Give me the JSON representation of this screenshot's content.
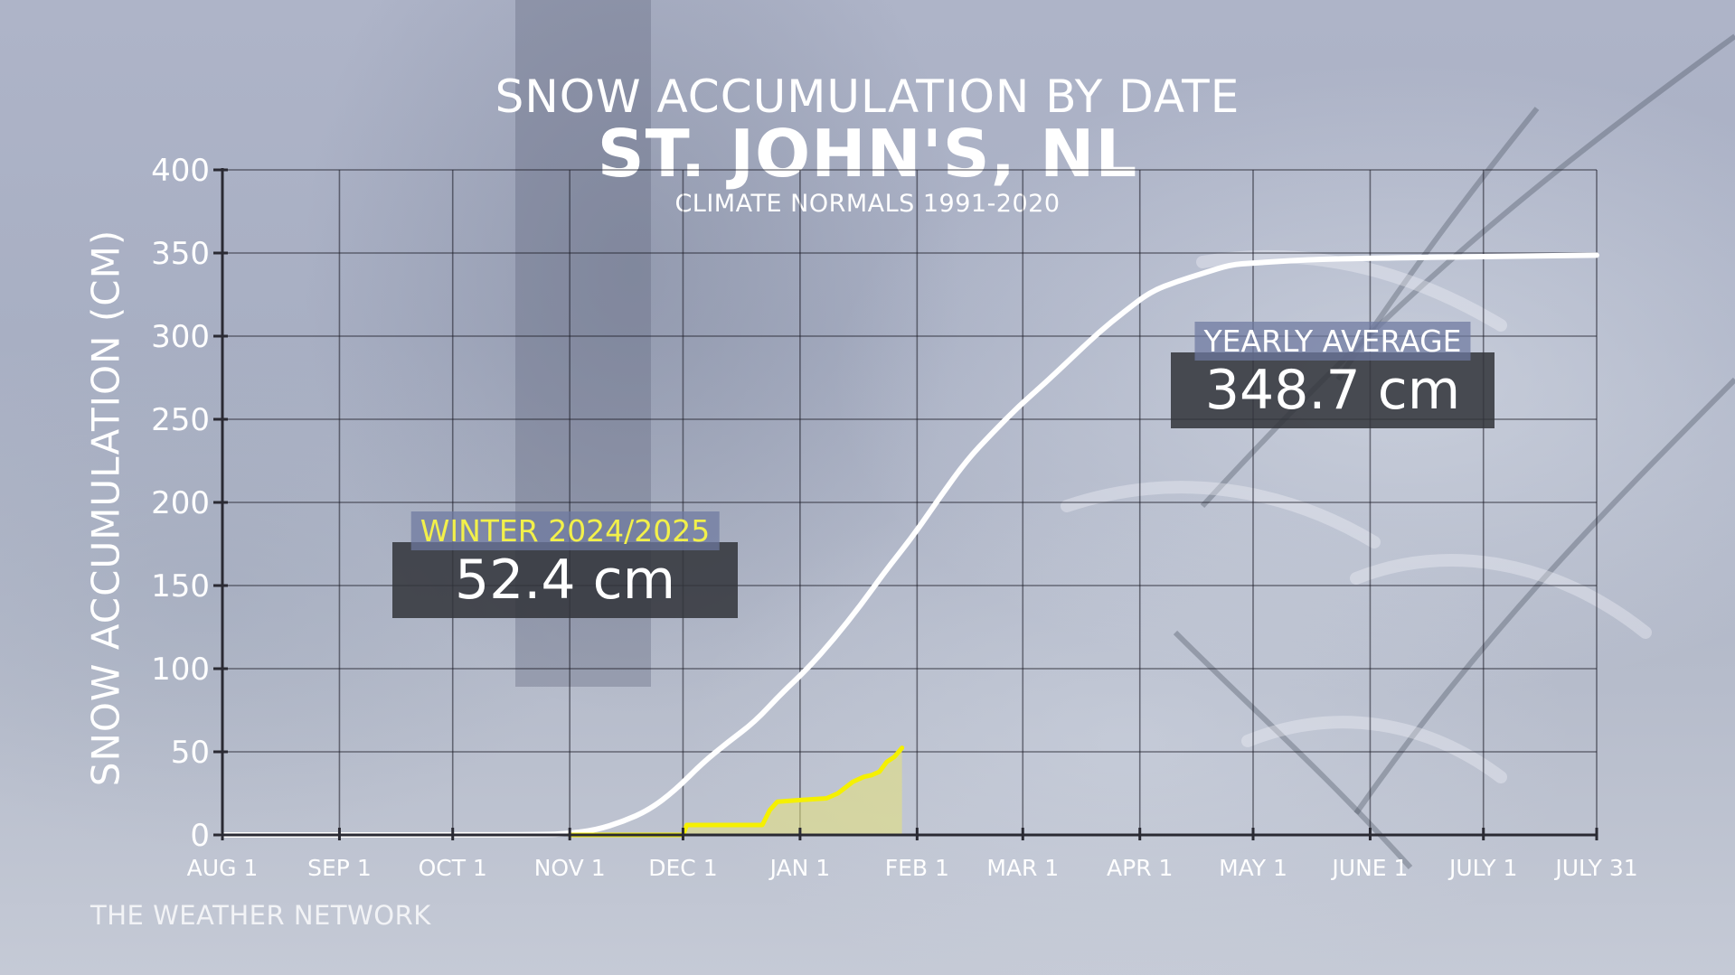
{
  "title": "SNOW ACCUMULATION BY DATE",
  "subtitle": "ST. JOHN'S, NL",
  "note": "CLIMATE NORMALS 1991-2020",
  "source": "THE WEATHER NETWORK",
  "callouts": {
    "winter": {
      "label": "WINTER 2024/2025",
      "value": "52.4 cm"
    },
    "yearly": {
      "label": "YEARLY AVERAGE",
      "value": "348.7 cm"
    }
  },
  "colors": {
    "average_line": "#ffffff",
    "winter_line": "#f5f000",
    "winter_fill": "#e6e27a"
  },
  "chart_data": {
    "type": "line",
    "title": "SNOW ACCUMULATION BY DATE",
    "ylabel": "SNOW ACCUMULATION (CM)",
    "xlabel": "",
    "ylim": [
      0,
      400
    ],
    "yticks": [
      0,
      50,
      100,
      150,
      200,
      250,
      300,
      350,
      400
    ],
    "xticks": [
      {
        "label": "AUG 1",
        "date": "Aug 1"
      },
      {
        "label": "SEP 1",
        "date": "Sep 1"
      },
      {
        "label": "OCT 1",
        "date": "Oct 1"
      },
      {
        "label": "NOV 1",
        "date": "Nov 1"
      },
      {
        "label": "DEC 1",
        "date": "Dec 1"
      },
      {
        "label": "JAN 1",
        "date": "Jan 1"
      },
      {
        "label": "FEB 1",
        "date": "Feb 1"
      },
      {
        "label": "MAR 1",
        "date": "Mar 1"
      },
      {
        "label": "APR 1",
        "date": "Apr 1"
      },
      {
        "label": "MAY 1",
        "date": "May 1"
      },
      {
        "label": "JUNE 1",
        "date": "Jun 1"
      },
      {
        "label": "JULY 1",
        "date": "Jul 1"
      },
      {
        "label": "JULY 31",
        "date": "Jul 31"
      }
    ],
    "grid": true,
    "series": [
      {
        "name": "YEARLY AVERAGE",
        "x": [
          "Aug 1",
          "Oct 25",
          "Nov 1",
          "Nov 8",
          "Nov 15",
          "Nov 22",
          "Nov 29",
          "Dec 6",
          "Dec 13",
          "Dec 20",
          "Dec 27",
          "Jan 3",
          "Jan 10",
          "Jan 17",
          "Jan 24",
          "Jan 31",
          "Feb 7",
          "Feb 14",
          "Feb 21",
          "Feb 28",
          "Mar 7",
          "Mar 14",
          "Mar 21",
          "Mar 28",
          "Apr 4",
          "Apr 11",
          "Apr 18",
          "Apr 25",
          "May 1",
          "May 15",
          "Jun 1",
          "Jul 31"
        ],
        "y": [
          0,
          0,
          1,
          3,
          8,
          15,
          27,
          43,
          56,
          68,
          85,
          100,
          118,
          138,
          160,
          180,
          203,
          225,
          242,
          258,
          272,
          287,
          302,
          315,
          327,
          333,
          338,
          343,
          344,
          346,
          347,
          348.7
        ]
      },
      {
        "name": "WINTER 2024/2025",
        "x": [
          "Nov 1",
          "Dec 1",
          "Dec 2",
          "Dec 22",
          "Dec 24",
          "Dec 26",
          "Jan 1",
          "Jan 8",
          "Jan 11",
          "Jan 15",
          "Jan 18",
          "Jan 20",
          "Jan 22",
          "Jan 24",
          "Jan 26",
          "Jan 28"
        ],
        "y": [
          0,
          0,
          6,
          6,
          15,
          20,
          21,
          22,
          25,
          32,
          35,
          36,
          38,
          44,
          47,
          52.4
        ]
      }
    ]
  }
}
